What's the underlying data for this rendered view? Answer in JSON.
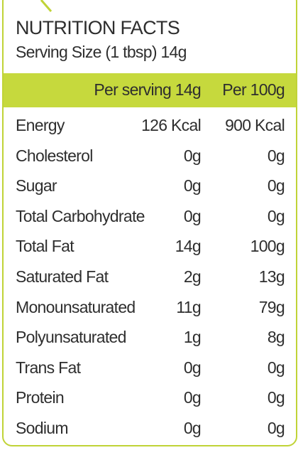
{
  "header": {
    "title": "NUTRITION FACTS",
    "serving": "Serving Size (1 tbsp) 14g"
  },
  "table": {
    "columns": [
      "Per serving 14g",
      "Per 100g"
    ],
    "rows": [
      [
        "Energy",
        "126 Kcal",
        "900 Kcal"
      ],
      [
        "Cholesterol",
        "0g",
        "0g"
      ],
      [
        "Sugar",
        "0g",
        "0g"
      ],
      [
        "Total Carbohydrate",
        "0g",
        "0g"
      ],
      [
        "Total Fat",
        "14g",
        "100g"
      ],
      [
        "Saturated Fat",
        "2g",
        "13g"
      ],
      [
        "Monounsaturated",
        "11g",
        "79g"
      ],
      [
        "Polyunsaturated",
        "1g",
        "8g"
      ],
      [
        "Trans Fat",
        "0g",
        "0g"
      ],
      [
        "Protein",
        "0g",
        "0g"
      ],
      [
        "Sodium",
        "0g",
        "0g"
      ]
    ]
  }
}
